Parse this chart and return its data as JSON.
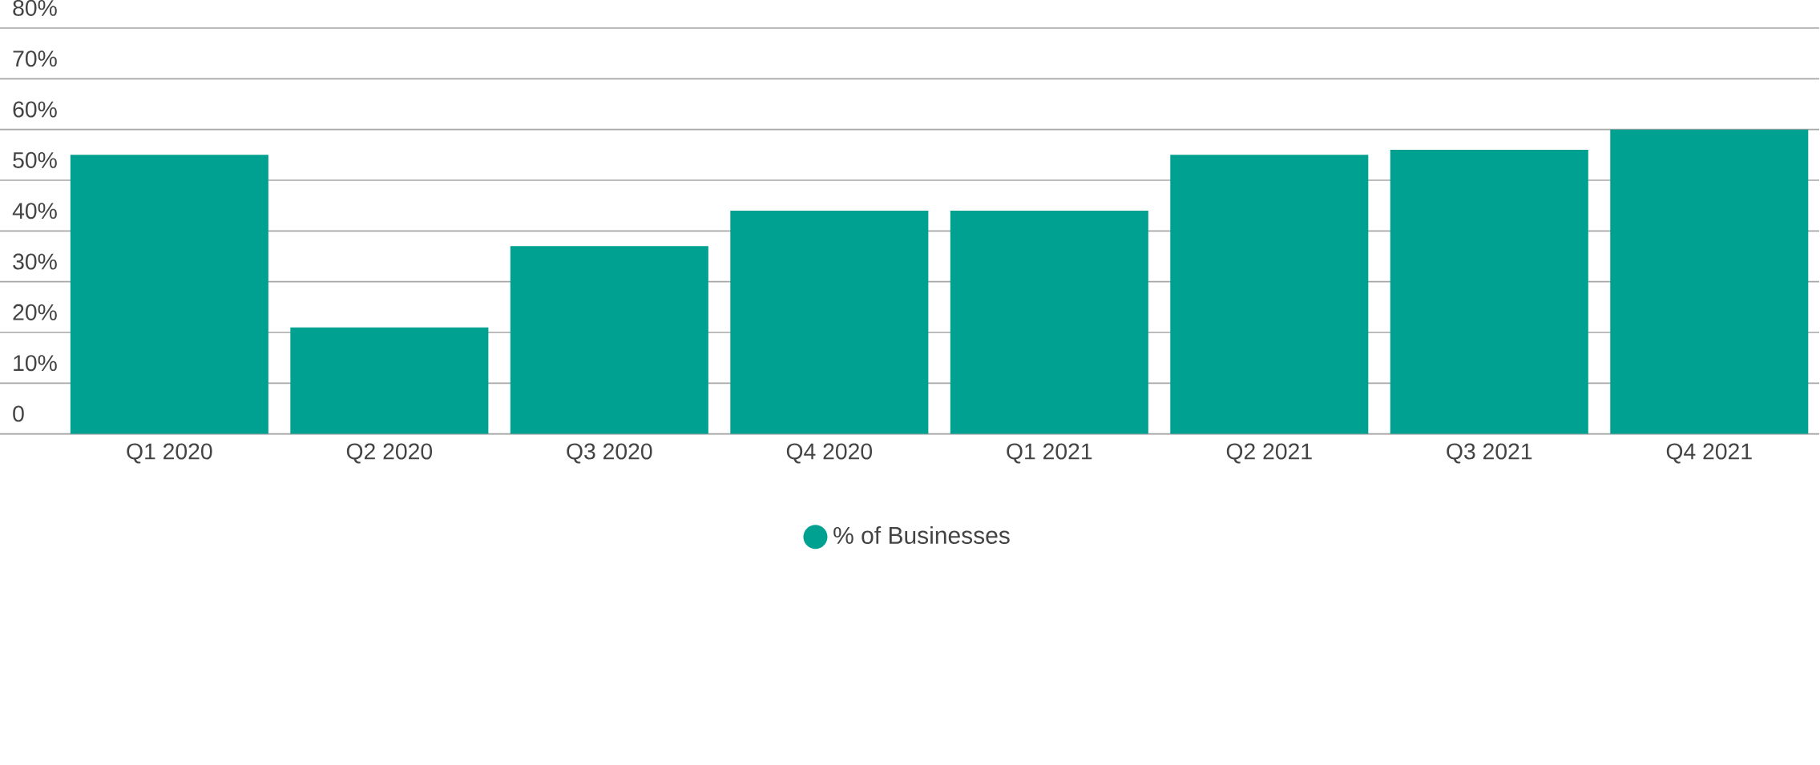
{
  "chart_data": {
    "type": "bar",
    "categories": [
      "Q1 2020",
      "Q2 2020",
      "Q3 2020",
      "Q4 2020",
      "Q1 2021",
      "Q2 2021",
      "Q3 2021",
      "Q4 2021"
    ],
    "series": [
      {
        "name": "% of Businesses",
        "color": "#00a191",
        "values": [
          55,
          21,
          37,
          44,
          44,
          55,
          56,
          60
        ]
      }
    ],
    "ylim": [
      0,
      80
    ],
    "yticks": [
      0,
      {
        "value": 10,
        "label": "10%"
      },
      {
        "value": 20,
        "label": "20%"
      },
      {
        "value": 30,
        "label": "30%"
      },
      {
        "value": 40,
        "label": "40%"
      },
      {
        "value": 50,
        "label": "50%"
      },
      {
        "value": 60,
        "label": "60%"
      },
      {
        "value": 70,
        "label": "70%"
      },
      {
        "value": 80,
        "label": "80%"
      }
    ],
    "grid": "y",
    "legend": "bottom"
  }
}
